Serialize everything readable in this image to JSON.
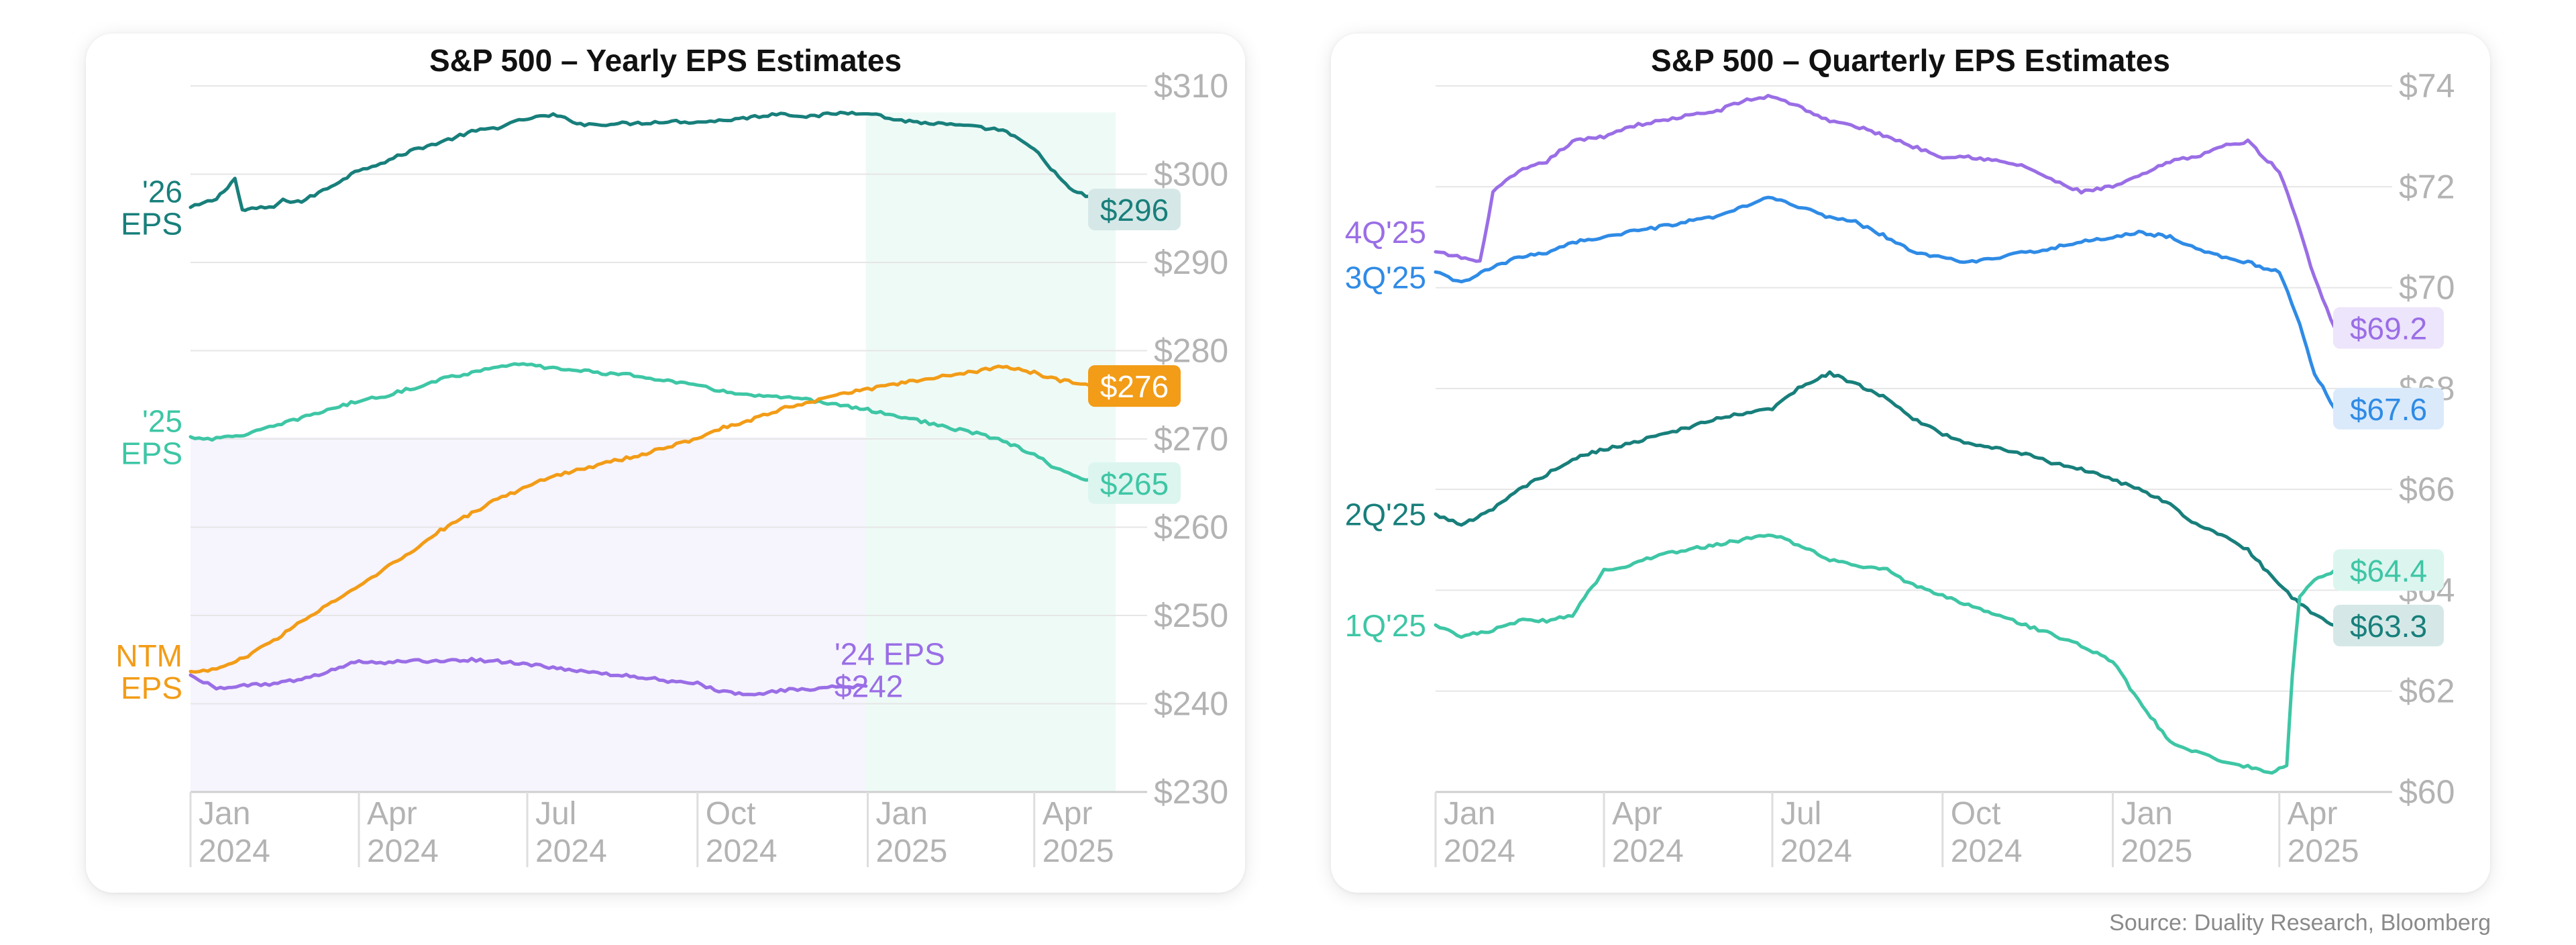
{
  "source": "Source: Duality Research, Bloomberg",
  "colors": {
    "eps26": "#187f7b",
    "eps25": "#3ec6a5",
    "ntm": "#f29c17",
    "eps24": "#9a6ee6",
    "q4": "#9a6ee6",
    "q3": "#2f8be6",
    "q2": "#187f7b",
    "q1": "#3ec6a5",
    "grid": "#e6e6e6",
    "axis_text": "#b3b3b3"
  },
  "chart_data": [
    {
      "type": "line",
      "title": "S&P 500 – Yearly EPS Estimates",
      "y_axis_side": "right",
      "ylim": [
        230,
        310
      ],
      "yticks": [
        230,
        240,
        250,
        260,
        270,
        280,
        290,
        300,
        310
      ],
      "ytick_labels": [
        "$230",
        "$240",
        "$250",
        "$260",
        "$270",
        "$280",
        "$290",
        "$300",
        "$310"
      ],
      "xlim": [
        "2024-01-01",
        "2025-06-01"
      ],
      "xticks": [
        "2024-01-01",
        "2024-04-01",
        "2024-07-01",
        "2024-10-01",
        "2025-01-01",
        "2025-04-01"
      ],
      "xtick_labels": [
        [
          "Jan",
          "2024"
        ],
        [
          "Apr",
          "2024"
        ],
        [
          "Jul",
          "2024"
        ],
        [
          "Oct",
          "2024"
        ],
        [
          "Jan",
          "2025"
        ],
        [
          "Apr",
          "2025"
        ]
      ],
      "grid": true,
      "shaded_regions": [
        {
          "x": [
            "2024-01-01",
            "2024-12-31"
          ],
          "y": [
            230,
            270.2
          ],
          "color": "#f6f4fd"
        },
        {
          "x": [
            "2024-12-31",
            "2025-05-15"
          ],
          "y": [
            230,
            307
          ],
          "color": "#eefaf6"
        }
      ],
      "series": [
        {
          "label": [
            "'26",
            "EPS"
          ],
          "color_key": "eps26",
          "x": [
            "2024-01-01",
            "2024-01-15",
            "2024-01-25",
            "2024-01-29",
            "2024-02-01",
            "2024-02-15",
            "2024-02-20",
            "2024-03-01",
            "2024-03-15",
            "2024-04-01",
            "2024-04-15",
            "2024-05-01",
            "2024-05-15",
            "2024-06-01",
            "2024-06-15",
            "2024-07-01",
            "2024-07-15",
            "2024-08-01",
            "2024-08-15",
            "2024-09-01",
            "2024-09-15",
            "2024-10-01",
            "2024-10-15",
            "2024-11-01",
            "2024-11-15",
            "2024-12-01",
            "2024-12-15",
            "2025-01-01",
            "2025-01-15",
            "2025-02-01",
            "2025-02-15",
            "2025-03-01",
            "2025-03-15",
            "2025-04-01",
            "2025-04-10",
            "2025-04-20",
            "2025-05-01",
            "2025-05-15"
          ],
          "y": [
            296.2,
            297.2,
            299.5,
            295.9,
            296.0,
            296.3,
            297.0,
            296.9,
            298.4,
            300.5,
            301.4,
            302.8,
            303.6,
            304.8,
            305.3,
            306.3,
            306.7,
            305.6,
            305.7,
            305.8,
            306.0,
            305.9,
            306.1,
            306.5,
            306.9,
            306.5,
            306.9,
            307.0,
            306.2,
            305.8,
            305.6,
            305.3,
            305.0,
            302.8,
            300.7,
            298.3,
            297.4,
            296.2
          ]
        },
        {
          "label": [
            "'25",
            "EPS"
          ],
          "color_key": "eps25",
          "x": [
            "2024-01-01",
            "2024-01-15",
            "2024-02-01",
            "2024-02-15",
            "2024-03-01",
            "2024-03-15",
            "2024-04-01",
            "2024-04-15",
            "2024-05-01",
            "2024-05-15",
            "2024-06-01",
            "2024-06-15",
            "2024-07-01",
            "2024-07-15",
            "2024-08-01",
            "2024-08-15",
            "2024-09-01",
            "2024-09-15",
            "2024-10-01",
            "2024-10-15",
            "2024-11-01",
            "2024-11-15",
            "2024-12-01",
            "2024-12-15",
            "2025-01-01",
            "2025-01-15",
            "2025-02-01",
            "2025-02-15",
            "2025-03-01",
            "2025-03-15",
            "2025-04-01",
            "2025-04-15",
            "2025-05-01",
            "2025-05-15"
          ],
          "y": [
            270.2,
            270.0,
            270.6,
            271.4,
            272.4,
            273.3,
            274.3,
            274.9,
            275.8,
            276.8,
            277.5,
            278.3,
            278.4,
            278.0,
            277.7,
            277.4,
            277.1,
            276.6,
            276.0,
            275.4,
            274.9,
            274.7,
            274.4,
            273.9,
            273.3,
            272.7,
            271.9,
            271.2,
            270.6,
            269.8,
            268.2,
            266.4,
            265.2,
            264.9
          ]
        },
        {
          "label": [
            "NTM",
            "EPS"
          ],
          "color_key": "ntm",
          "x": [
            "2024-01-01",
            "2024-01-15",
            "2024-02-01",
            "2024-02-15",
            "2024-03-01",
            "2024-03-15",
            "2024-04-01",
            "2024-04-15",
            "2024-05-01",
            "2024-05-15",
            "2024-06-01",
            "2024-06-15",
            "2024-07-01",
            "2024-07-15",
            "2024-08-01",
            "2024-08-15",
            "2024-09-01",
            "2024-09-15",
            "2024-10-01",
            "2024-10-15",
            "2024-11-01",
            "2024-11-15",
            "2024-12-01",
            "2024-12-15",
            "2025-01-01",
            "2025-01-15",
            "2025-02-01",
            "2025-02-15",
            "2025-03-01",
            "2025-03-15",
            "2025-04-01",
            "2025-04-15",
            "2025-05-01",
            "2025-05-15"
          ],
          "y": [
            243.6,
            243.9,
            245.4,
            247.2,
            249.3,
            251.2,
            253.2,
            255.3,
            257.4,
            259.6,
            261.6,
            263.2,
            264.6,
            265.8,
            266.7,
            267.4,
            268.2,
            269.1,
            270.1,
            271.3,
            272.3,
            273.4,
            274.2,
            275.1,
            275.6,
            276.2,
            276.7,
            277.3,
            277.7,
            278.2,
            277.5,
            276.6,
            276.2,
            276.3
          ]
        },
        {
          "label": [
            "'24 EPS",
            "$242"
          ],
          "color_key": "eps24",
          "x": [
            "2024-01-01",
            "2024-01-15",
            "2024-02-01",
            "2024-02-15",
            "2024-03-01",
            "2024-03-15",
            "2024-04-01",
            "2024-04-15",
            "2024-05-01",
            "2024-05-15",
            "2024-06-01",
            "2024-06-15",
            "2024-07-01",
            "2024-07-15",
            "2024-08-01",
            "2024-08-15",
            "2024-09-01",
            "2024-09-15",
            "2024-10-01",
            "2024-10-15",
            "2024-11-01",
            "2024-11-15",
            "2024-12-01",
            "2024-12-15",
            "2024-12-31"
          ],
          "y": [
            243.2,
            241.8,
            242.1,
            242.3,
            242.7,
            243.6,
            244.9,
            244.6,
            244.9,
            244.8,
            245.0,
            244.8,
            244.5,
            244.0,
            243.7,
            243.3,
            243.0,
            242.6,
            242.3,
            241.3,
            241.0,
            241.5,
            241.7,
            241.9,
            242.0
          ]
        }
      ],
      "end_labels": [
        {
          "text": "$296",
          "value": 296,
          "color_key": "eps26",
          "style": "tinted"
        },
        {
          "text": "$276",
          "value": 276,
          "color_key": "ntm",
          "style": "solid"
        },
        {
          "text": "$265",
          "value": 265,
          "color_key": "eps25",
          "style": "tinted"
        }
      ]
    },
    {
      "type": "line",
      "title": "S&P 500 – Quarterly EPS Estimates",
      "y_axis_side": "right",
      "ylim": [
        60,
        74
      ],
      "yticks": [
        60,
        62,
        64,
        66,
        68,
        70,
        72,
        74
      ],
      "ytick_labels": [
        "$60",
        "$62",
        "$64",
        "$66",
        "$68",
        "$70",
        "$72",
        "$74"
      ],
      "xlim": [
        "2024-01-01",
        "2025-06-01"
      ],
      "xticks": [
        "2024-01-01",
        "2024-04-01",
        "2024-07-01",
        "2024-10-01",
        "2025-01-01",
        "2025-04-01"
      ],
      "xtick_labels": [
        [
          "Jan",
          "2024"
        ],
        [
          "Apr",
          "2024"
        ],
        [
          "Jul",
          "2024"
        ],
        [
          "Oct",
          "2024"
        ],
        [
          "Jan",
          "2025"
        ],
        [
          "Apr",
          "2025"
        ]
      ],
      "grid": true,
      "series": [
        {
          "label": [
            "4Q'25"
          ],
          "color_key": "q4",
          "x": [
            "2024-01-01",
            "2024-01-15",
            "2024-01-25",
            "2024-02-01",
            "2024-02-15",
            "2024-03-01",
            "2024-03-15",
            "2024-04-01",
            "2024-04-15",
            "2024-05-01",
            "2024-05-15",
            "2024-06-01",
            "2024-06-15",
            "2024-07-01",
            "2024-07-15",
            "2024-08-01",
            "2024-08-15",
            "2024-09-01",
            "2024-09-15",
            "2024-10-01",
            "2024-10-15",
            "2024-11-01",
            "2024-11-15",
            "2024-12-01",
            "2024-12-15",
            "2025-01-01",
            "2025-01-15",
            "2025-02-01",
            "2025-02-15",
            "2025-03-01",
            "2025-03-15",
            "2025-04-01",
            "2025-04-10",
            "2025-04-20",
            "2025-05-01"
          ],
          "y": [
            70.7,
            70.6,
            70.5,
            71.9,
            72.3,
            72.5,
            72.9,
            73.0,
            73.2,
            73.3,
            73.4,
            73.5,
            73.7,
            73.8,
            73.6,
            73.3,
            73.2,
            73.0,
            72.8,
            72.6,
            72.6,
            72.5,
            72.4,
            72.1,
            71.9,
            72.0,
            72.2,
            72.5,
            72.6,
            72.8,
            72.9,
            72.3,
            71.4,
            70.2,
            69.2
          ]
        },
        {
          "label": [
            "3Q'25"
          ],
          "color_key": "q3",
          "x": [
            "2024-01-01",
            "2024-01-15",
            "2024-02-01",
            "2024-02-15",
            "2024-03-01",
            "2024-03-15",
            "2024-04-01",
            "2024-04-15",
            "2024-05-01",
            "2024-05-15",
            "2024-06-01",
            "2024-06-15",
            "2024-07-01",
            "2024-07-15",
            "2024-08-01",
            "2024-08-15",
            "2024-09-01",
            "2024-09-15",
            "2024-10-01",
            "2024-10-15",
            "2024-11-01",
            "2024-11-15",
            "2024-12-01",
            "2024-12-15",
            "2025-01-01",
            "2025-01-15",
            "2025-02-01",
            "2025-02-15",
            "2025-03-01",
            "2025-03-15",
            "2025-04-01",
            "2025-04-10",
            "2025-04-20",
            "2025-05-01"
          ],
          "y": [
            70.3,
            70.1,
            70.4,
            70.6,
            70.7,
            70.9,
            71.0,
            71.1,
            71.2,
            71.3,
            71.4,
            71.6,
            71.8,
            71.6,
            71.4,
            71.3,
            71.0,
            70.7,
            70.6,
            70.5,
            70.6,
            70.7,
            70.8,
            70.9,
            71.0,
            71.1,
            71.0,
            70.8,
            70.6,
            70.5,
            70.3,
            69.5,
            68.3,
            67.6
          ]
        },
        {
          "label": [
            "2Q'25"
          ],
          "color_key": "q2",
          "x": [
            "2024-01-01",
            "2024-01-15",
            "2024-02-01",
            "2024-02-15",
            "2024-03-01",
            "2024-03-15",
            "2024-04-01",
            "2024-04-15",
            "2024-05-01",
            "2024-05-15",
            "2024-06-01",
            "2024-06-15",
            "2024-07-01",
            "2024-07-15",
            "2024-08-01",
            "2024-08-15",
            "2024-09-01",
            "2024-09-15",
            "2024-10-01",
            "2024-10-15",
            "2024-11-01",
            "2024-11-15",
            "2024-12-01",
            "2024-12-15",
            "2025-01-01",
            "2025-01-15",
            "2025-02-01",
            "2025-02-15",
            "2025-03-01",
            "2025-03-15",
            "2025-04-01",
            "2025-04-10",
            "2025-04-20",
            "2025-05-01"
          ],
          "y": [
            65.5,
            65.3,
            65.6,
            66.0,
            66.3,
            66.6,
            66.8,
            66.9,
            67.1,
            67.2,
            67.4,
            67.5,
            67.6,
            68.0,
            68.3,
            68.1,
            67.8,
            67.4,
            67.1,
            66.9,
            66.8,
            66.7,
            66.5,
            66.4,
            66.2,
            66.0,
            65.7,
            65.3,
            65.1,
            64.8,
            64.1,
            63.8,
            63.5,
            63.3
          ]
        },
        {
          "label": [
            "1Q'25"
          ],
          "color_key": "q1",
          "x": [
            "2024-01-01",
            "2024-01-15",
            "2024-02-01",
            "2024-02-15",
            "2024-03-01",
            "2024-03-15",
            "2024-04-01",
            "2024-04-15",
            "2024-05-01",
            "2024-05-15",
            "2024-06-01",
            "2024-06-15",
            "2024-07-01",
            "2024-07-15",
            "2024-08-01",
            "2024-08-15",
            "2024-09-01",
            "2024-09-15",
            "2024-10-01",
            "2024-10-15",
            "2024-11-01",
            "2024-11-15",
            "2024-12-01",
            "2024-12-15",
            "2025-01-01",
            "2025-01-15",
            "2025-02-01",
            "2025-02-15",
            "2025-03-01",
            "2025-03-15",
            "2025-03-28",
            "2025-04-05",
            "2025-04-08",
            "2025-04-12",
            "2025-04-20",
            "2025-05-01"
          ],
          "y": [
            63.3,
            63.1,
            63.2,
            63.4,
            63.4,
            63.5,
            64.4,
            64.5,
            64.7,
            64.8,
            64.9,
            65.0,
            65.1,
            64.9,
            64.6,
            64.5,
            64.4,
            64.1,
            63.9,
            63.7,
            63.5,
            63.3,
            63.1,
            62.9,
            62.6,
            61.8,
            61.0,
            60.8,
            60.6,
            60.5,
            60.4,
            60.5,
            62.3,
            63.9,
            64.2,
            64.4
          ]
        }
      ],
      "end_labels": [
        {
          "text": "$69.2",
          "value": 69.2,
          "color_key": "q4",
          "style": "tinted"
        },
        {
          "text": "$67.6",
          "value": 67.6,
          "color_key": "q3",
          "style": "tinted"
        },
        {
          "text": "$64.4",
          "value": 64.4,
          "color_key": "q1",
          "style": "tinted"
        },
        {
          "text": "$63.3",
          "value": 63.3,
          "color_key": "q2",
          "style": "tinted"
        }
      ]
    }
  ]
}
